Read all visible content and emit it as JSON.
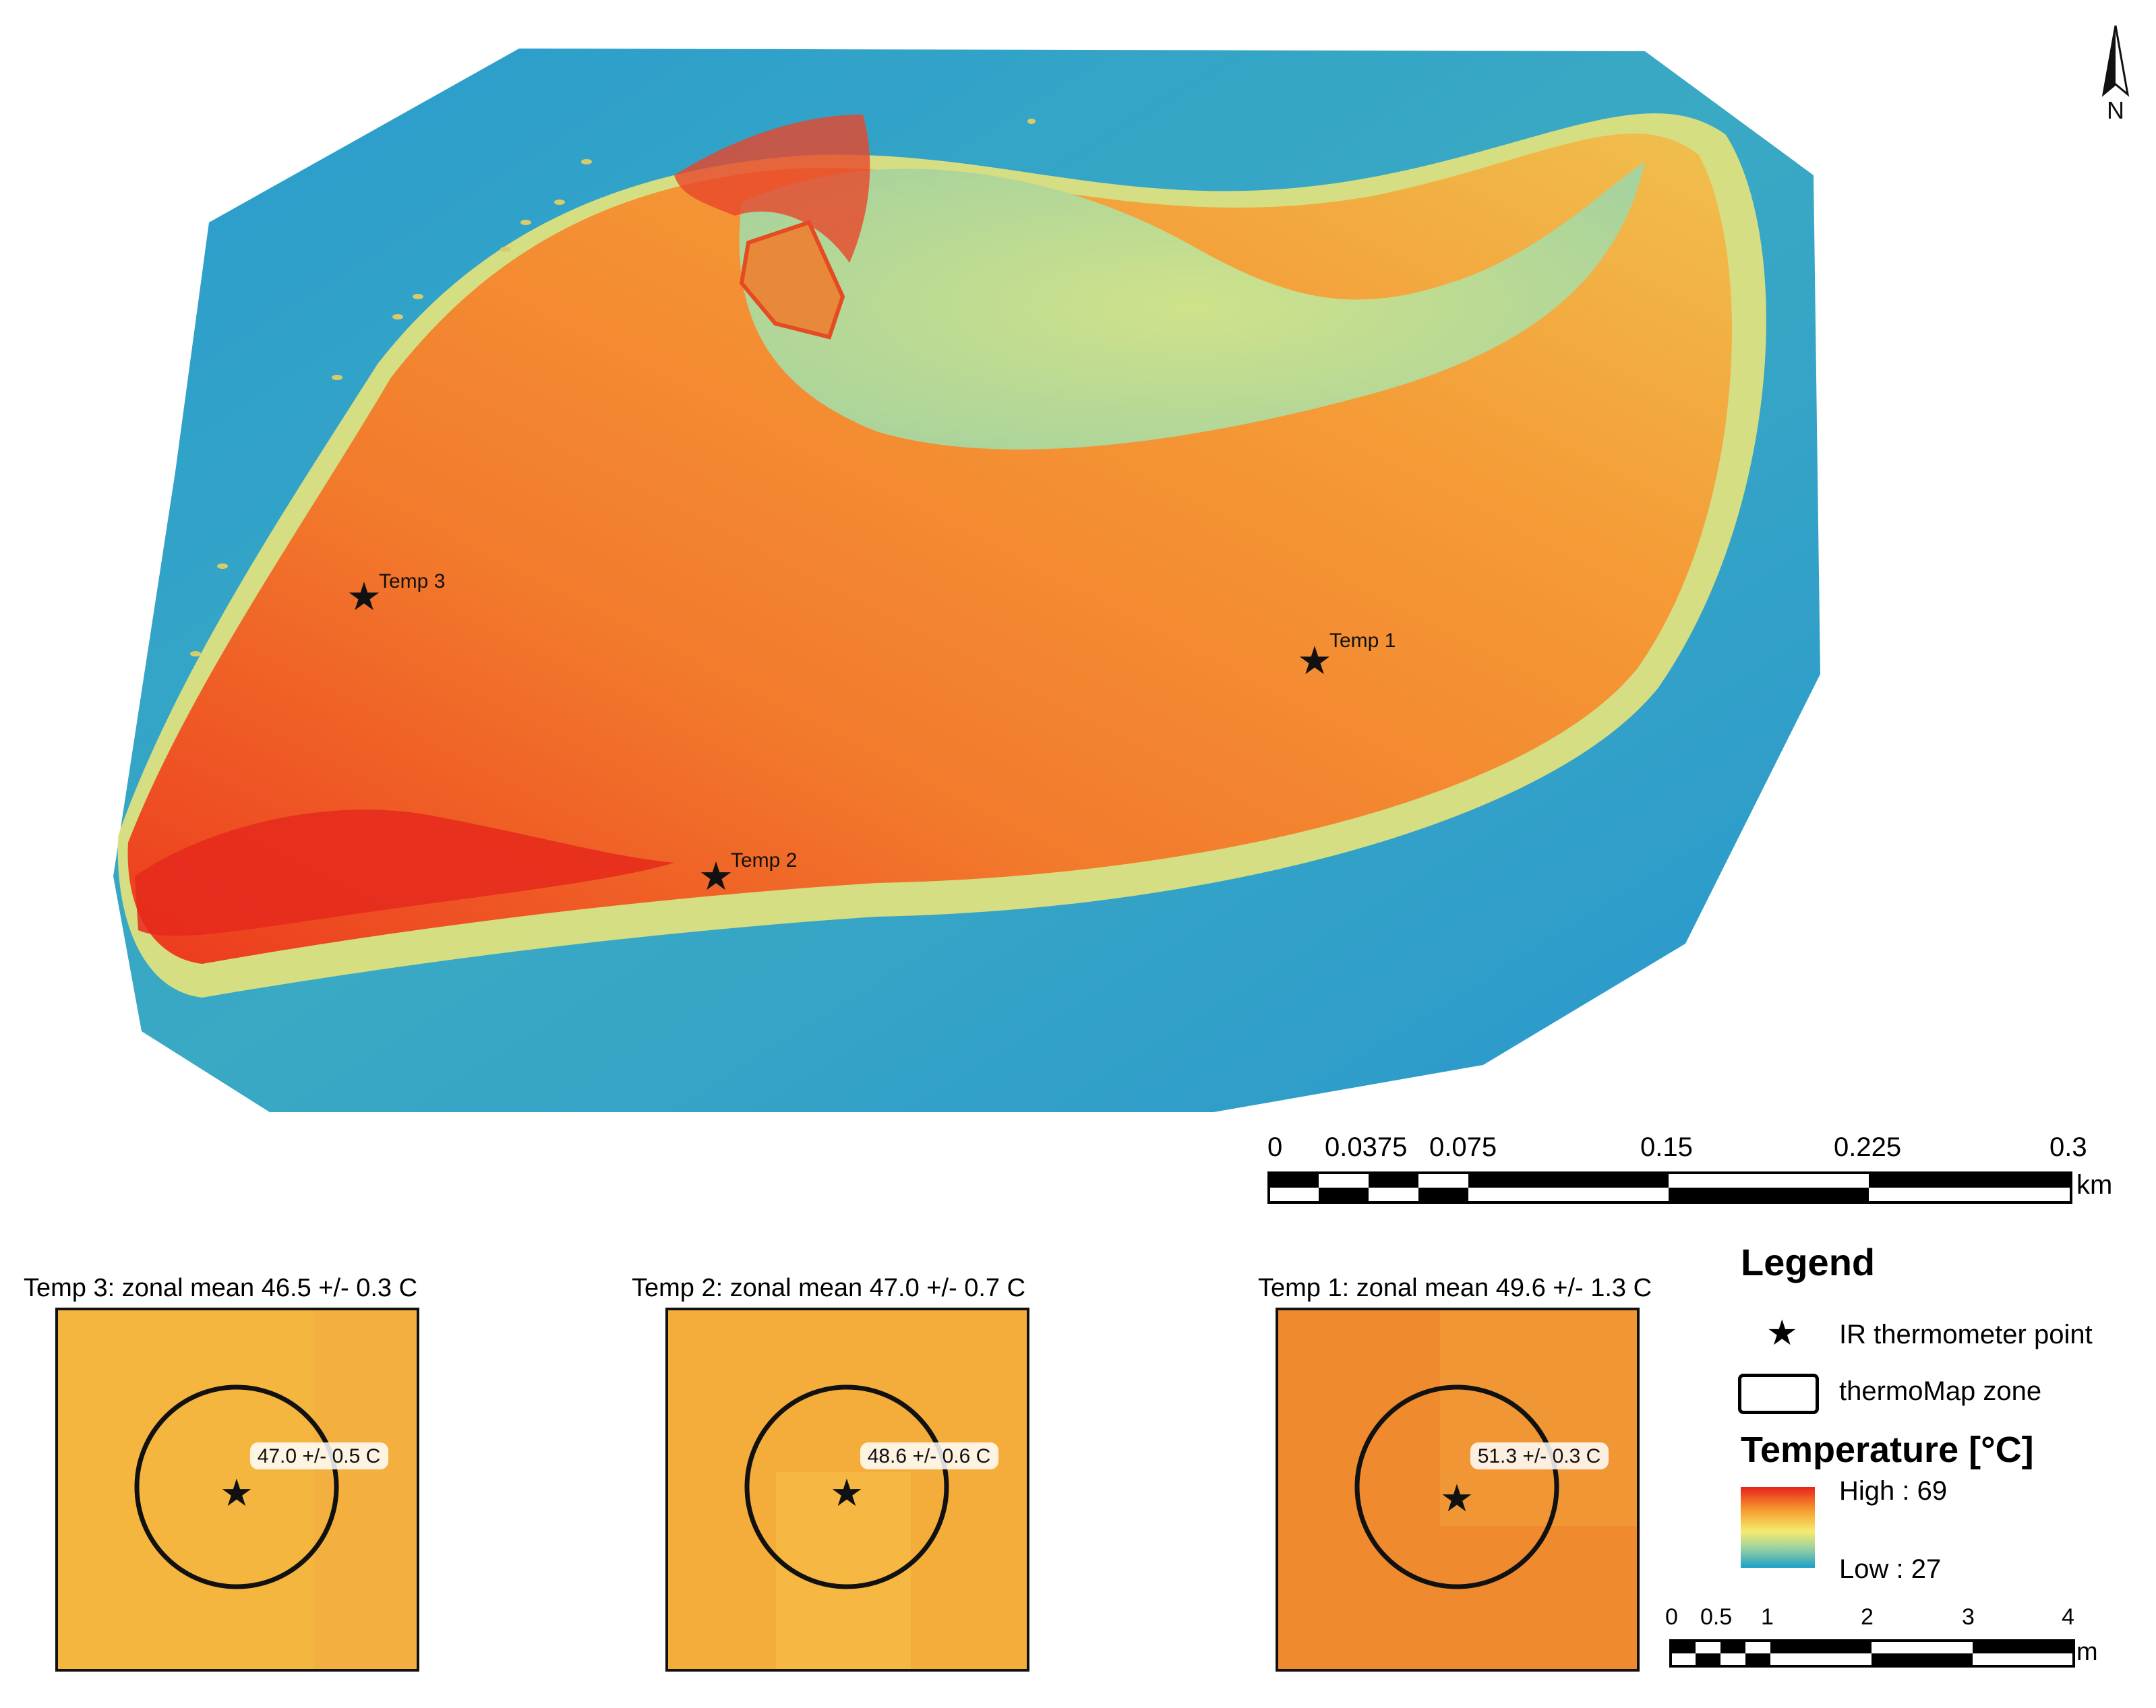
{
  "north_arrow": {
    "label": "N"
  },
  "map": {
    "points": [
      {
        "id": "temp3",
        "label": "Temp 3"
      },
      {
        "id": "temp2",
        "label": "Temp 2"
      },
      {
        "id": "temp1",
        "label": "Temp 1"
      }
    ]
  },
  "main_scale": {
    "ticks": [
      "0",
      "0.0375",
      "0.075",
      "0.15",
      "0.225",
      "0.3"
    ],
    "unit": "km"
  },
  "insets": [
    {
      "title": "Temp 3: zonal mean 46.5 +/- 0.3 C",
      "point_value": "47.0 +/- 0.5 C",
      "fill": "#f5b640"
    },
    {
      "title": "Temp 2: zonal mean 47.0 +/- 0.7 C",
      "point_value": "48.6 +/- 0.6 C",
      "fill": "#f4ad3b"
    },
    {
      "title": "Temp 1: zonal mean 49.6 +/- 1.3 C",
      "point_value": "51.3 +/- 0.3 C",
      "fill": "#ef8a2e"
    }
  ],
  "legend": {
    "title": "Legend",
    "items": [
      {
        "icon": "star-icon",
        "label": "IR thermometer point"
      },
      {
        "icon": "zone-outline-icon",
        "label": "thermoMap zone"
      }
    ],
    "ramp_title": "Temperature [°C]",
    "high_label": "High : 69",
    "low_label": "Low : 27",
    "colors": {
      "high": "#e8231c",
      "mid": "#f5ec6e",
      "low": "#1aa0c8"
    }
  },
  "inset_scale": {
    "ticks": [
      "0",
      "0.5",
      "1",
      "2",
      "3",
      "4"
    ],
    "unit": "m"
  }
}
